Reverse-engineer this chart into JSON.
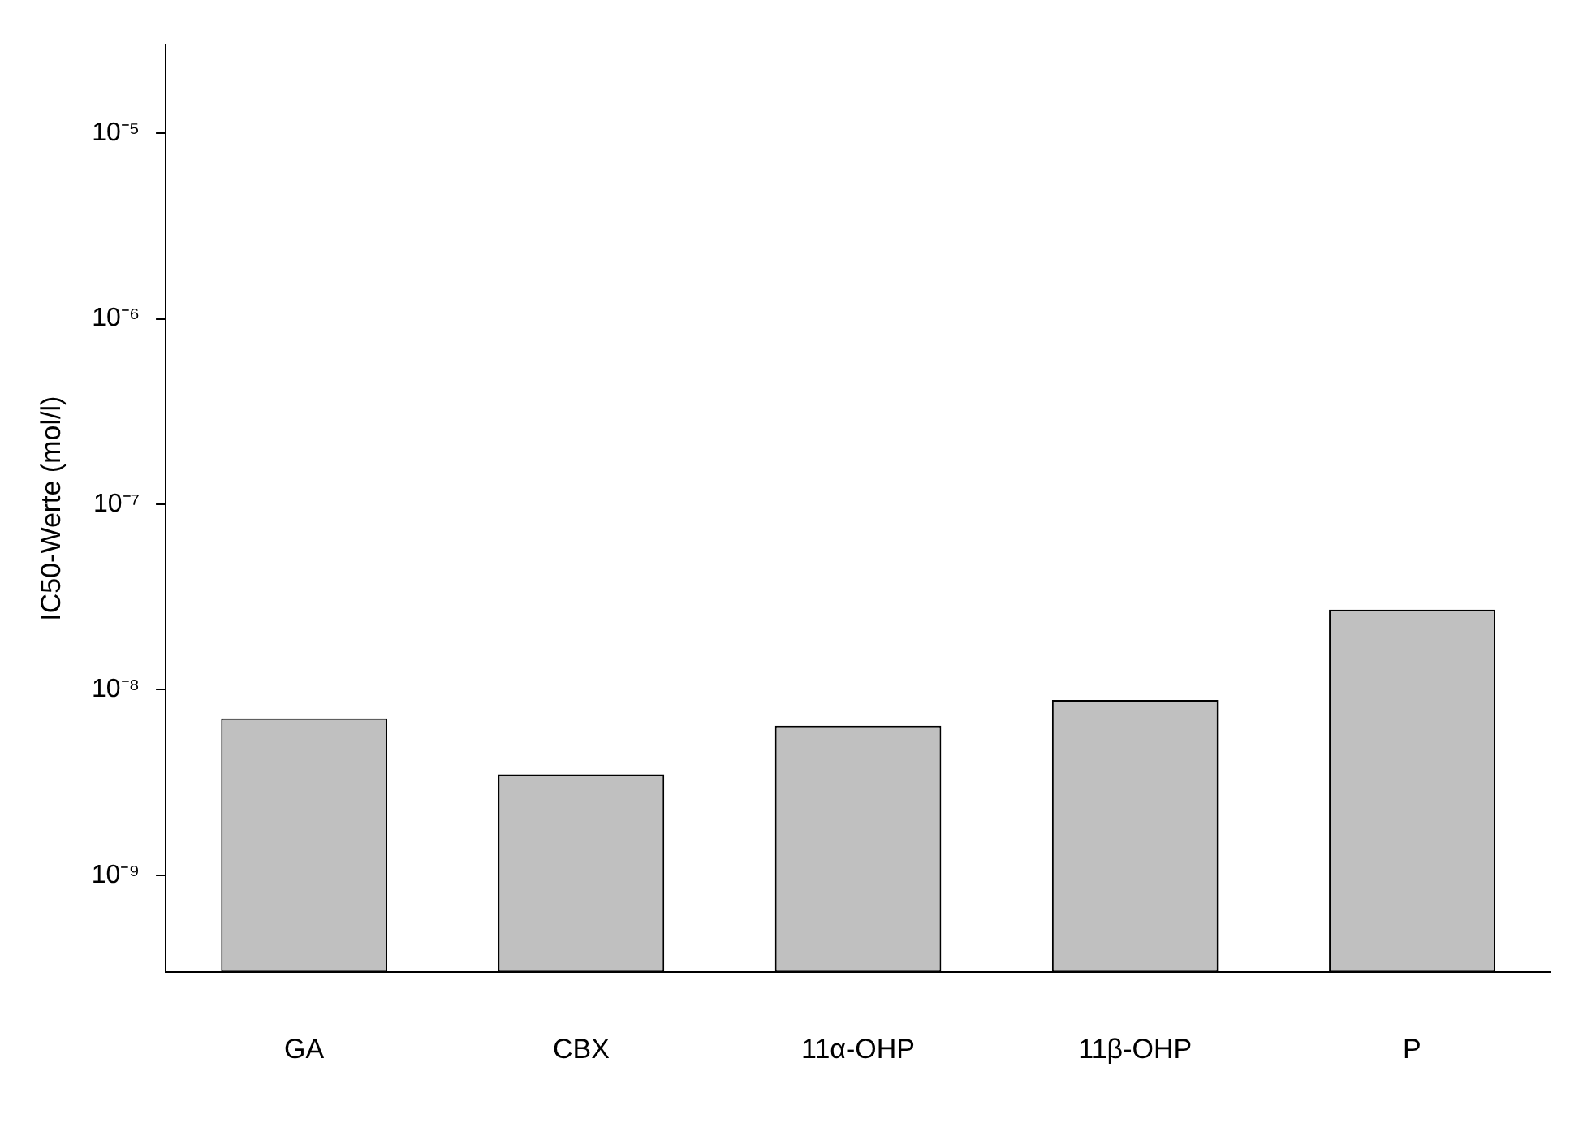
{
  "chart_data": {
    "type": "bar",
    "ylabel": "IC50-Werte (mol/l)",
    "categories": [
      "GA",
      "CBX",
      "11α-OHP",
      "11β-OHP",
      "P"
    ],
    "values": [
      7e-09,
      3.5e-09,
      6.4e-09,
      8.8e-09,
      2.7e-08
    ],
    "color": "#c0c0c0",
    "log": "y",
    "ylim": [
      3e-10,
      3e-05
    ],
    "yticks": [
      {
        "value": 1e-09,
        "label": "10⁻⁹"
      },
      {
        "value": 1e-08,
        "label": "10⁻⁸"
      },
      {
        "value": 1e-07,
        "label": "10⁻⁷"
      },
      {
        "value": 1e-06,
        "label": "10⁻⁶"
      },
      {
        "value": 1e-05,
        "label": "10⁻⁵"
      }
    ],
    "grid": false,
    "legend": false
  }
}
